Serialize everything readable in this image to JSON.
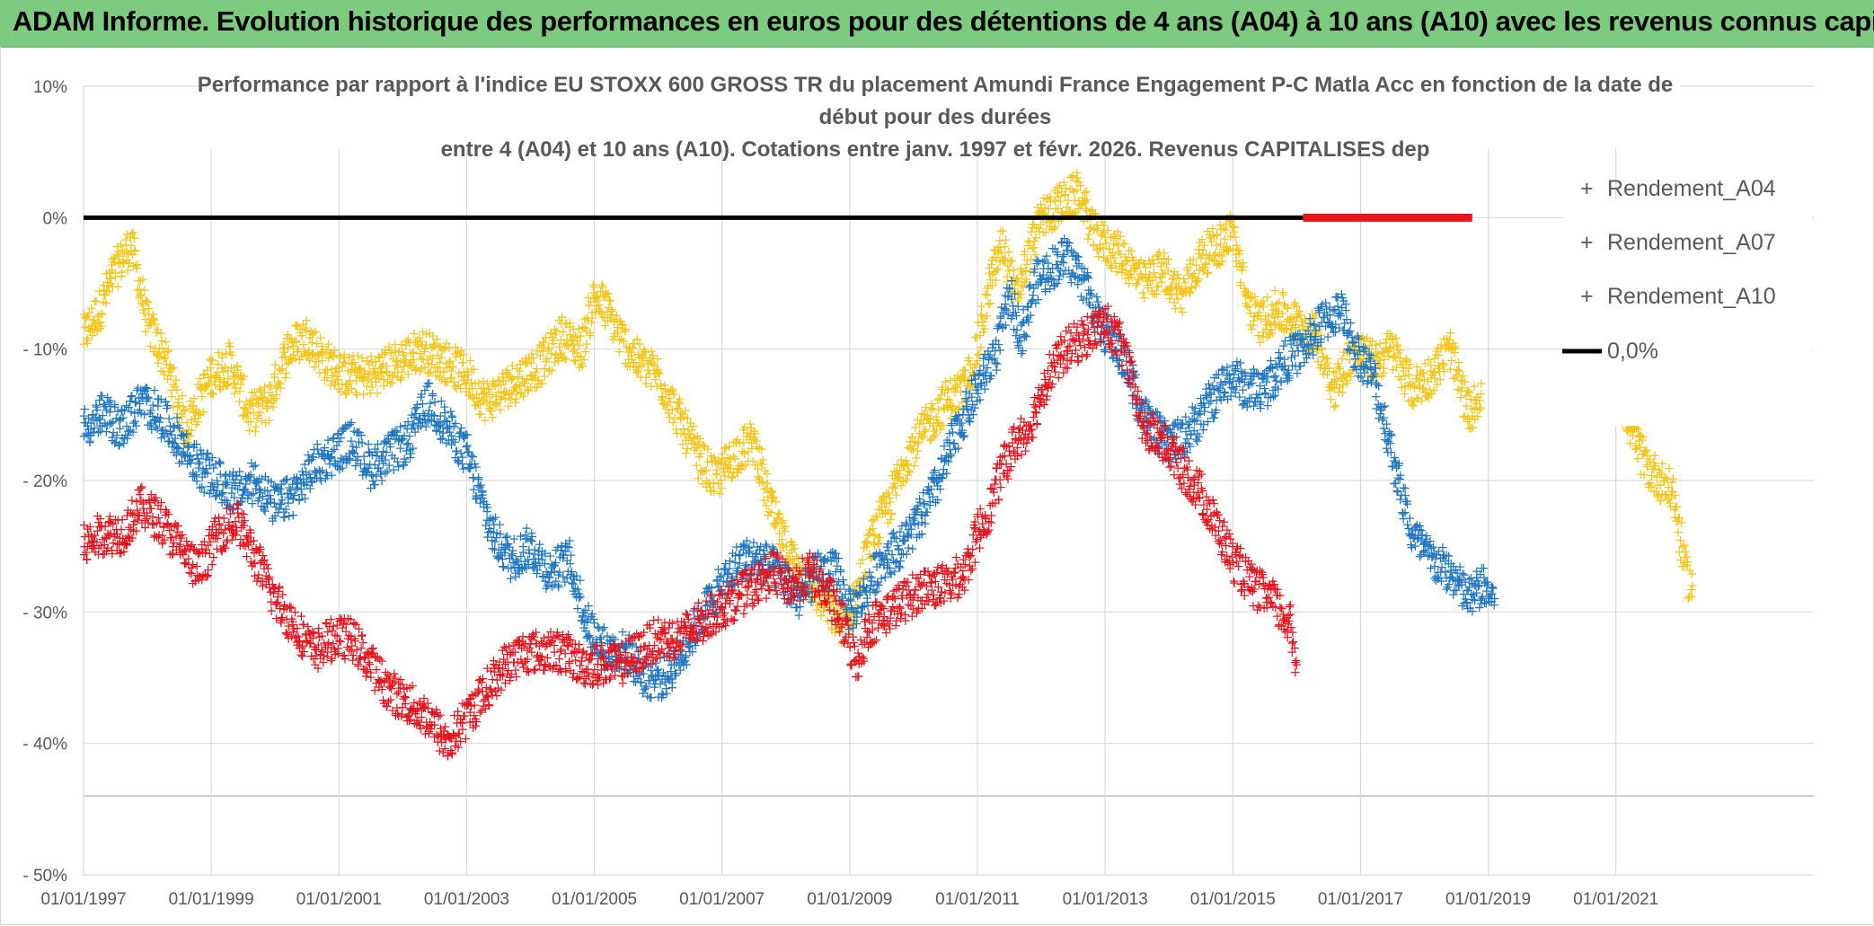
{
  "banner": {
    "title": "ADAM Informe. Evolution historique des performances en euros pour des détentions de 4 ans (A04) à 10 ans (A10) avec les revenus connus capitalisés"
  },
  "chart_data": {
    "type": "scatter",
    "title_lines": [
      "Performance par rapport à l'indice EU STOXX 600 GROSS TR  du placement Amundi France Engagement P-C Matla Acc en fonction de la date de",
      "début pour des durées",
      "entre 4 (A04) et 10 ans (A10). Cotations entre janv. 1997 et févr. 2026. Revenus CAPITALISES dep"
    ],
    "xlabel": "",
    "ylabel": "",
    "x_range": [
      1997.0,
      2024.1
    ],
    "ylim": [
      -50,
      10
    ],
    "x_ticks": [
      "01/01/1997",
      "01/01/1999",
      "01/01/2001",
      "01/01/2003",
      "01/01/2005",
      "01/01/2007",
      "01/01/2009",
      "01/01/2011",
      "01/01/2013",
      "01/01/2015",
      "01/01/2017",
      "01/01/2019",
      "01/01/2021"
    ],
    "x_tick_years": [
      1997,
      1999,
      2001,
      2003,
      2005,
      2007,
      2009,
      2011,
      2013,
      2015,
      2017,
      2019,
      2021
    ],
    "y_ticks": [
      "10%",
      "0%",
      "- 10%",
      "- 20%",
      "- 30%",
      "- 40%",
      "- 50%"
    ],
    "y_tick_values": [
      10,
      0,
      -10,
      -20,
      -30,
      -40,
      -50
    ],
    "legend_position": "top-right",
    "series": [
      {
        "name": "Rendement_A04",
        "color": "#f5c518",
        "marker": "+",
        "points": [
          [
            1997.0,
            -9
          ],
          [
            1997.25,
            -7
          ],
          [
            1997.5,
            -4
          ],
          [
            1997.75,
            -2
          ],
          [
            1998.0,
            -8
          ],
          [
            1998.3,
            -11
          ],
          [
            1998.6,
            -16
          ],
          [
            1998.8,
            -14
          ],
          [
            1999.0,
            -12
          ],
          [
            1999.3,
            -11
          ],
          [
            1999.6,
            -15
          ],
          [
            1999.9,
            -14
          ],
          [
            2000.2,
            -10
          ],
          [
            2000.5,
            -9
          ],
          [
            2000.8,
            -11
          ],
          [
            2001.1,
            -12
          ],
          [
            2001.5,
            -12
          ],
          [
            2001.9,
            -11
          ],
          [
            2002.3,
            -10
          ],
          [
            2002.7,
            -11
          ],
          [
            2003.0,
            -12
          ],
          [
            2003.3,
            -14
          ],
          [
            2003.6,
            -13
          ],
          [
            2003.9,
            -12
          ],
          [
            2004.2,
            -11
          ],
          [
            2004.5,
            -9
          ],
          [
            2004.8,
            -10
          ],
          [
            2005.0,
            -6
          ],
          [
            2005.2,
            -7
          ],
          [
            2005.4,
            -9
          ],
          [
            2005.7,
            -11
          ],
          [
            2006.0,
            -12
          ],
          [
            2006.3,
            -15
          ],
          [
            2006.6,
            -18
          ],
          [
            2006.9,
            -20
          ],
          [
            2007.2,
            -18
          ],
          [
            2007.5,
            -17
          ],
          [
            2007.7,
            -21
          ],
          [
            2007.9,
            -24
          ],
          [
            2008.1,
            -26
          ],
          [
            2008.4,
            -28
          ],
          [
            2008.7,
            -30
          ],
          [
            2008.9,
            -31
          ],
          [
            2009.1,
            -29
          ],
          [
            2009.3,
            -25
          ],
          [
            2009.6,
            -22
          ],
          [
            2009.9,
            -18
          ],
          [
            2010.2,
            -16
          ],
          [
            2010.5,
            -14
          ],
          [
            2010.8,
            -13
          ],
          [
            2011.0,
            -10
          ],
          [
            2011.2,
            -5
          ],
          [
            2011.4,
            -2
          ],
          [
            2011.6,
            -6
          ],
          [
            2011.8,
            -3
          ],
          [
            2012.0,
            0
          ],
          [
            2012.3,
            1
          ],
          [
            2012.6,
            2
          ],
          [
            2012.8,
            -1
          ],
          [
            2013.0,
            -2
          ],
          [
            2013.3,
            -3
          ],
          [
            2013.6,
            -5
          ],
          [
            2013.9,
            -4
          ],
          [
            2014.2,
            -6
          ],
          [
            2014.5,
            -3
          ],
          [
            2014.8,
            -2
          ],
          [
            2015.0,
            -1
          ],
          [
            2015.2,
            -6
          ],
          [
            2015.4,
            -8
          ],
          [
            2015.7,
            -7
          ],
          [
            2016.0,
            -8
          ],
          [
            2016.3,
            -9
          ],
          [
            2016.6,
            -13
          ],
          [
            2016.9,
            -10
          ],
          [
            2017.2,
            -11
          ],
          [
            2017.5,
            -10
          ],
          [
            2017.8,
            -13
          ],
          [
            2018.1,
            -12
          ],
          [
            2018.4,
            -10
          ],
          [
            2018.7,
            -15
          ],
          [
            2018.9,
            -13
          ],
          [
            2021.1,
            -14
          ],
          [
            2021.3,
            -17
          ],
          [
            2021.5,
            -19
          ],
          [
            2021.7,
            -20
          ],
          [
            2021.9,
            -21
          ],
          [
            2022.1,
            -27
          ],
          [
            2022.2,
            -28
          ]
        ]
      },
      {
        "name": "Rendement_A07",
        "color": "#1f77c4",
        "marker": "+",
        "points": [
          [
            1997.0,
            -16
          ],
          [
            1997.3,
            -15
          ],
          [
            1997.6,
            -16
          ],
          [
            1997.9,
            -14
          ],
          [
            1998.2,
            -15
          ],
          [
            1998.5,
            -17
          ],
          [
            1998.8,
            -19
          ],
          [
            1999.1,
            -20
          ],
          [
            1999.4,
            -21
          ],
          [
            1999.7,
            -20
          ],
          [
            2000.0,
            -22
          ],
          [
            2000.3,
            -21
          ],
          [
            2000.6,
            -19
          ],
          [
            2000.9,
            -18
          ],
          [
            2001.2,
            -17
          ],
          [
            2001.5,
            -19
          ],
          [
            2001.8,
            -18
          ],
          [
            2002.1,
            -17
          ],
          [
            2002.4,
            -14
          ],
          [
            2002.7,
            -16
          ],
          [
            2003.0,
            -18
          ],
          [
            2003.2,
            -21
          ],
          [
            2003.4,
            -24
          ],
          [
            2003.7,
            -26
          ],
          [
            2004.0,
            -25
          ],
          [
            2004.3,
            -27
          ],
          [
            2004.6,
            -26
          ],
          [
            2004.9,
            -31
          ],
          [
            2005.2,
            -33
          ],
          [
            2005.5,
            -33
          ],
          [
            2005.8,
            -35
          ],
          [
            2006.1,
            -35
          ],
          [
            2006.4,
            -33
          ],
          [
            2006.7,
            -30
          ],
          [
            2007.0,
            -28
          ],
          [
            2007.3,
            -26
          ],
          [
            2007.6,
            -26
          ],
          [
            2007.9,
            -27
          ],
          [
            2008.2,
            -29
          ],
          [
            2008.5,
            -27
          ],
          [
            2008.8,
            -27
          ],
          [
            2009.0,
            -30
          ],
          [
            2009.2,
            -29
          ],
          [
            2009.5,
            -26
          ],
          [
            2009.8,
            -25
          ],
          [
            2010.1,
            -23
          ],
          [
            2010.4,
            -20
          ],
          [
            2010.7,
            -16
          ],
          [
            2011.0,
            -13
          ],
          [
            2011.3,
            -10
          ],
          [
            2011.5,
            -6
          ],
          [
            2011.7,
            -9
          ],
          [
            2011.9,
            -5
          ],
          [
            2012.1,
            -4
          ],
          [
            2012.4,
            -3
          ],
          [
            2012.7,
            -5
          ],
          [
            2012.9,
            -8
          ],
          [
            2013.2,
            -10
          ],
          [
            2013.4,
            -12
          ],
          [
            2013.6,
            -15
          ],
          [
            2013.9,
            -17
          ],
          [
            2014.2,
            -17
          ],
          [
            2014.5,
            -15
          ],
          [
            2014.8,
            -13
          ],
          [
            2015.0,
            -12
          ],
          [
            2015.2,
            -13
          ],
          [
            2015.5,
            -13
          ],
          [
            2015.8,
            -11
          ],
          [
            2016.1,
            -10
          ],
          [
            2016.4,
            -8
          ],
          [
            2016.7,
            -7
          ],
          [
            2016.9,
            -10
          ],
          [
            2017.2,
            -12
          ],
          [
            2017.5,
            -18
          ],
          [
            2017.8,
            -24
          ],
          [
            2018.1,
            -26
          ],
          [
            2018.4,
            -27
          ],
          [
            2018.7,
            -29
          ],
          [
            2018.9,
            -28
          ],
          [
            2019.1,
            -29
          ]
        ]
      },
      {
        "name": "Rendement_A10",
        "color": "#e8141d",
        "marker": "+",
        "points": [
          [
            1997.0,
            -25
          ],
          [
            1997.3,
            -24
          ],
          [
            1997.6,
            -24
          ],
          [
            1997.9,
            -22
          ],
          [
            1998.2,
            -23
          ],
          [
            1998.5,
            -25
          ],
          [
            1998.8,
            -27
          ],
          [
            1999.1,
            -24
          ],
          [
            1999.4,
            -23
          ],
          [
            1999.7,
            -26
          ],
          [
            2000.0,
            -29
          ],
          [
            2000.3,
            -31
          ],
          [
            2000.6,
            -33
          ],
          [
            2000.9,
            -32
          ],
          [
            2001.2,
            -32
          ],
          [
            2001.5,
            -34
          ],
          [
            2001.8,
            -36
          ],
          [
            2002.1,
            -37
          ],
          [
            2002.4,
            -38
          ],
          [
            2002.7,
            -40
          ],
          [
            2003.0,
            -38
          ],
          [
            2003.3,
            -36
          ],
          [
            2003.6,
            -34
          ],
          [
            2003.9,
            -33
          ],
          [
            2004.2,
            -33
          ],
          [
            2004.5,
            -33
          ],
          [
            2004.8,
            -34
          ],
          [
            2005.1,
            -34
          ],
          [
            2005.4,
            -34
          ],
          [
            2005.7,
            -33
          ],
          [
            2006.0,
            -32
          ],
          [
            2006.3,
            -32
          ],
          [
            2006.6,
            -31
          ],
          [
            2006.9,
            -30
          ],
          [
            2007.2,
            -29
          ],
          [
            2007.5,
            -28
          ],
          [
            2007.8,
            -27
          ],
          [
            2008.1,
            -28
          ],
          [
            2008.4,
            -27
          ],
          [
            2008.7,
            -29
          ],
          [
            2008.9,
            -31
          ],
          [
            2009.1,
            -34
          ],
          [
            2009.3,
            -31
          ],
          [
            2009.6,
            -30
          ],
          [
            2009.9,
            -29
          ],
          [
            2010.2,
            -28
          ],
          [
            2010.5,
            -28
          ],
          [
            2010.8,
            -27
          ],
          [
            2011.0,
            -24
          ],
          [
            2011.2,
            -22
          ],
          [
            2011.4,
            -19
          ],
          [
            2011.6,
            -17
          ],
          [
            2011.8,
            -16
          ],
          [
            2012.1,
            -12
          ],
          [
            2012.4,
            -10
          ],
          [
            2012.7,
            -9
          ],
          [
            2013.0,
            -8
          ],
          [
            2013.3,
            -10
          ],
          [
            2013.6,
            -16
          ],
          [
            2013.9,
            -17
          ],
          [
            2014.2,
            -19
          ],
          [
            2014.5,
            -21
          ],
          [
            2014.8,
            -24
          ],
          [
            2015.0,
            -26
          ],
          [
            2015.3,
            -28
          ],
          [
            2015.6,
            -29
          ],
          [
            2015.9,
            -31
          ],
          [
            2016.0,
            -34
          ]
        ]
      }
    ],
    "zero_line": {
      "name": "0,0%",
      "color": "#000000",
      "x_from": 1997.0,
      "x_to": 2016.1,
      "y": 0
    },
    "highlight_segment": {
      "color": "#e8141d",
      "x_from": 2016.1,
      "x_to": 2018.75,
      "y": 0
    },
    "highlight_tail": {
      "color": "#e8141d",
      "x": 2024.0,
      "y": 0
    }
  }
}
